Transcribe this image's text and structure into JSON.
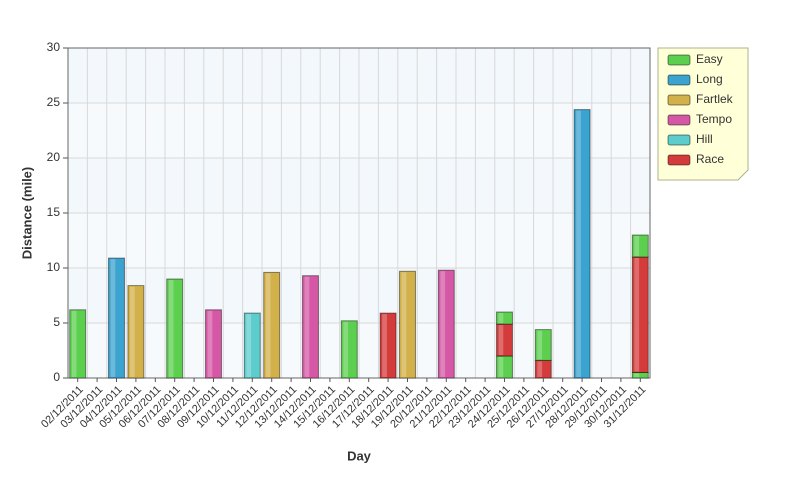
{
  "chart_data": {
    "type": "stacked_bar",
    "x_label": "Day",
    "y_label": "Distance (mile)",
    "categories": [
      "02/12/2011",
      "03/12/2011",
      "04/12/2011",
      "05/12/2011",
      "06/12/2011",
      "07/12/2011",
      "08/12/2011",
      "09/12/2011",
      "10/12/2011",
      "11/12/2011",
      "12/12/2011",
      "13/12/2011",
      "14/12/2011",
      "15/12/2011",
      "16/12/2011",
      "17/12/2011",
      "18/12/2011",
      "19/12/2011",
      "20/12/2011",
      "21/12/2011",
      "22/12/2011",
      "23/12/2011",
      "24/12/2011",
      "25/12/2011",
      "26/12/2011",
      "27/12/2011",
      "28/12/2011",
      "29/12/2011",
      "30/12/2011",
      "31/12/2011"
    ],
    "series": [
      {
        "name": "Easy",
        "color": "#5ccf4f",
        "values": [
          6.2,
          null,
          null,
          null,
          null,
          9.0,
          null,
          null,
          null,
          null,
          null,
          null,
          null,
          null,
          5.2,
          null,
          null,
          null,
          null,
          null,
          null,
          null,
          2.0,
          null,
          null,
          null,
          null,
          null,
          null,
          0.5
        ]
      },
      {
        "name": "Long",
        "color": "#3aa3cf",
        "values": [
          null,
          null,
          10.9,
          null,
          null,
          null,
          null,
          null,
          null,
          null,
          null,
          null,
          null,
          null,
          null,
          null,
          null,
          null,
          null,
          null,
          null,
          null,
          null,
          null,
          null,
          null,
          24.4,
          null,
          null,
          null
        ]
      },
      {
        "name": "Fartlek",
        "color": "#d3b14a",
        "values": [
          null,
          null,
          null,
          8.4,
          null,
          null,
          null,
          null,
          null,
          null,
          9.6,
          null,
          null,
          null,
          null,
          null,
          null,
          9.7,
          null,
          null,
          null,
          null,
          null,
          null,
          null,
          null,
          null,
          null,
          null,
          null
        ]
      },
      {
        "name": "Tempo",
        "color": "#d558a6",
        "values": [
          null,
          null,
          null,
          null,
          null,
          null,
          null,
          6.2,
          null,
          null,
          null,
          null,
          9.3,
          null,
          null,
          null,
          null,
          null,
          null,
          9.8,
          null,
          null,
          null,
          null,
          null,
          null,
          null,
          null,
          null,
          null
        ]
      },
      {
        "name": "Hill",
        "color": "#5ccccc",
        "values": [
          null,
          null,
          null,
          null,
          null,
          null,
          null,
          null,
          null,
          5.9,
          null,
          null,
          null,
          null,
          null,
          null,
          null,
          null,
          null,
          null,
          null,
          null,
          null,
          null,
          null,
          null,
          null,
          null,
          null,
          null
        ]
      },
      {
        "name": "Race",
        "color": "#d43b3b",
        "values": [
          null,
          null,
          null,
          null,
          null,
          null,
          null,
          null,
          null,
          null,
          null,
          null,
          null,
          null,
          null,
          null,
          5.9,
          null,
          null,
          null,
          null,
          null,
          2.9,
          null,
          1.6,
          null,
          null,
          null,
          null,
          10.5
        ]
      },
      {
        "name": "Easy",
        "color": "#5ccf4f",
        "values": [
          null,
          null,
          null,
          null,
          null,
          null,
          null,
          null,
          null,
          null,
          null,
          null,
          null,
          null,
          null,
          null,
          null,
          null,
          null,
          null,
          null,
          null,
          1.1,
          null,
          2.8,
          null,
          null,
          null,
          null,
          2.0
        ]
      }
    ],
    "ylim": [
      0,
      30
    ],
    "yticks": [
      0,
      5,
      10,
      15,
      20,
      25,
      30
    ],
    "grid": true,
    "legend": "top-right"
  }
}
